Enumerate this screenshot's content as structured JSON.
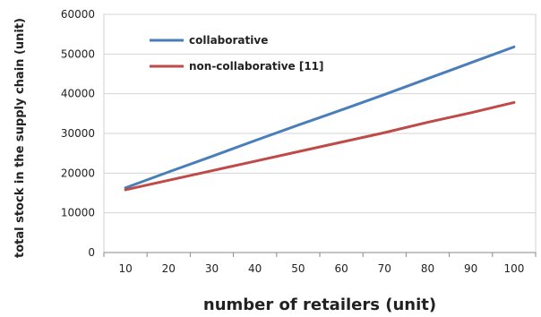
{
  "chart_data": {
    "type": "line",
    "title": "",
    "xlabel": "number of retailers (unit)",
    "ylabel": "total stock in the supply chain (unit)",
    "x": [
      10,
      20,
      30,
      40,
      50,
      60,
      70,
      80,
      90,
      100
    ],
    "xticks": [
      "10",
      "20",
      "30",
      "40",
      "50",
      "60",
      "70",
      "80",
      "90",
      "100"
    ],
    "yticks": [
      "0",
      "10000",
      "20000",
      "30000",
      "40000",
      "50000",
      "60000"
    ],
    "ylim": [
      0,
      60000
    ],
    "grid": "horizontal",
    "legend_position": "top-left",
    "series": [
      {
        "name": "collaborative",
        "color": "#4a7ebb",
        "values": [
          16300,
          20300,
          24200,
          28200,
          32100,
          35900,
          39800,
          43800,
          47800,
          51800
        ]
      },
      {
        "name": "non-collaborative  [11]",
        "color": "#be4b48",
        "values": [
          15800,
          18200,
          20600,
          23000,
          25400,
          27800,
          30200,
          32800,
          35200,
          37800
        ]
      }
    ]
  }
}
